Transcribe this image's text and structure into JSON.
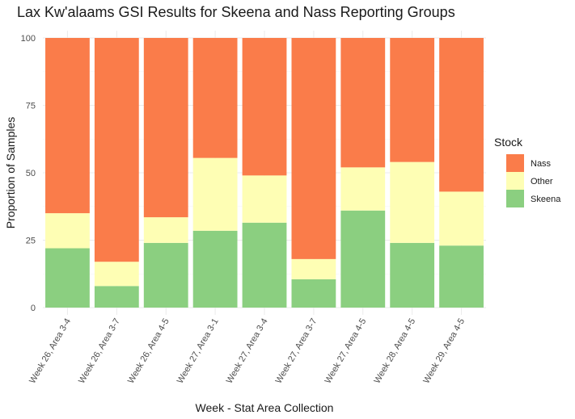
{
  "chart_data": {
    "type": "bar",
    "stacked": true,
    "title": "Lax Kw'alaams GSI Results for Skeena and Nass Reporting Groups",
    "xlabel": "Week - Stat Area Collection",
    "ylabel": "Proportion of Samples",
    "ylim": [
      0,
      100
    ],
    "yticks": [
      0,
      25,
      50,
      75,
      100
    ],
    "grid": true,
    "legend_position": "right",
    "legend_title": "Stock",
    "categories": [
      "Week 26, Area 3-4",
      "Week 26, Area 3-7",
      "Week 26, Area 4-5",
      "Week 27, Area 3-1",
      "Week 27, Area 3-4",
      "Week 27, Area 3-7",
      "Week 27, Area 4-5",
      "Week 28, Area 4-5",
      "Week 29, Area 4-5"
    ],
    "series": [
      {
        "name": "Skeena",
        "color": "#8bcf80",
        "values": [
          22,
          8,
          24,
          28.5,
          31.5,
          10.5,
          36,
          24,
          23
        ]
      },
      {
        "name": "Other",
        "color": "#fefeb4",
        "values": [
          13,
          9,
          9.5,
          27,
          17.5,
          7.5,
          16,
          30,
          20
        ]
      },
      {
        "name": "Nass",
        "color": "#fa7c4a",
        "values": [
          65,
          83,
          66.5,
          44.5,
          51,
          82,
          48,
          46,
          57
        ]
      }
    ],
    "legend_order": [
      "Nass",
      "Other",
      "Skeena"
    ]
  }
}
